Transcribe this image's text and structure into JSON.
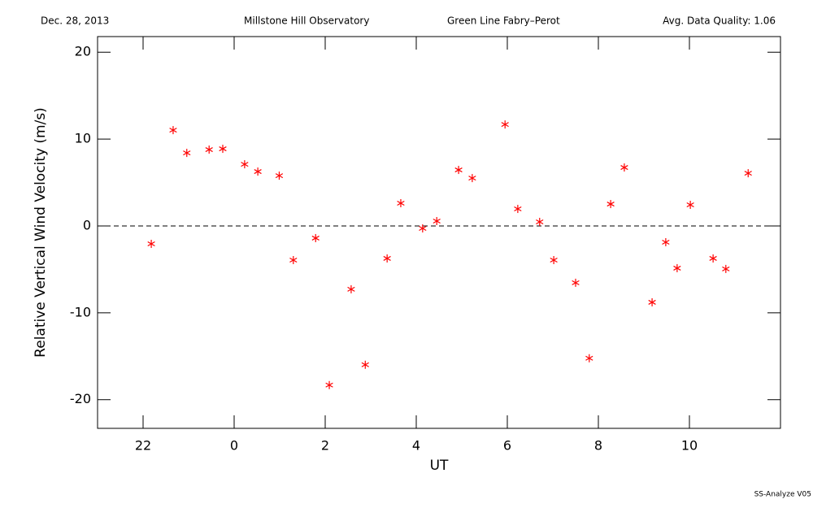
{
  "chart_data": {
    "type": "scatter",
    "header": [
      "Dec. 28, 2013",
      "Millstone Hill Observatory",
      "Green Line Fabry–Perot",
      "Avg. Data Quality: 1.06"
    ],
    "footer": "SS-Analyze V05",
    "xlabel": "UT",
    "ylabel": "Relative Vertical Wind Velocity (m/s)",
    "xlim": [
      21,
      36
    ],
    "ylim": [
      -23.3,
      21.8
    ],
    "xticks": [
      22,
      {
        "value": 24,
        "label": "0"
      },
      {
        "value": 26,
        "label": "2"
      },
      {
        "value": 28,
        "label": "4"
      },
      {
        "value": 30,
        "label": "6"
      },
      {
        "value": 32,
        "label": "8"
      },
      {
        "value": 34,
        "label": "10"
      }
    ],
    "yticks": [
      -20,
      -10,
      0,
      10,
      20
    ],
    "reference_line": 0,
    "color": "#ff0000",
    "x": [
      22.18,
      22.66,
      22.96,
      23.45,
      23.75,
      24.23,
      24.52,
      24.99,
      25.3,
      25.79,
      26.09,
      26.57,
      26.88,
      27.36,
      27.66,
      28.14,
      28.45,
      28.93,
      29.23,
      29.95,
      30.23,
      30.71,
      31.02,
      31.5,
      31.8,
      32.27,
      32.57,
      33.18,
      33.48,
      33.73,
      34.02,
      34.52,
      34.8,
      35.29
    ],
    "y": [
      -2.06,
      11.03,
      8.41,
      8.79,
      8.88,
      7.1,
      6.26,
      5.79,
      -3.93,
      -1.4,
      -18.32,
      -7.29,
      -15.98,
      -3.74,
      2.62,
      -0.28,
      0.56,
      6.45,
      5.51,
      11.68,
      1.96,
      0.47,
      -3.93,
      -6.54,
      -15.23,
      2.52,
      6.73,
      -8.79,
      -1.87,
      -4.86,
      2.43,
      -3.74,
      -4.95,
      6.07
    ]
  }
}
